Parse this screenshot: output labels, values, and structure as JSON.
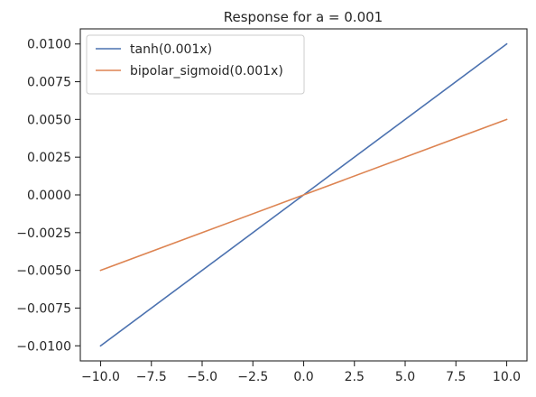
{
  "chart_data": {
    "type": "line",
    "title": "Response for a = 0.001",
    "xlabel": "",
    "ylabel": "",
    "xlim": [
      -11,
      11
    ],
    "ylim": [
      -0.011,
      0.011
    ],
    "x_ticks": [
      -10.0,
      -7.5,
      -5.0,
      -2.5,
      0.0,
      2.5,
      5.0,
      7.5,
      10.0
    ],
    "x_tick_labels": [
      "−10.0",
      "−7.5",
      "−5.0",
      "−2.5",
      "0.0",
      "2.5",
      "5.0",
      "7.5",
      "10.0"
    ],
    "y_ticks": [
      -0.01,
      -0.0075,
      -0.005,
      -0.0025,
      0.0,
      0.0025,
      0.005,
      0.0075,
      0.01
    ],
    "y_tick_labels": [
      "−0.0100",
      "−0.0075",
      "−0.0050",
      "−0.0025",
      "0.0000",
      "0.0025",
      "0.0050",
      "0.0075",
      "0.0100"
    ],
    "grid": false,
    "legend_position": "top-left",
    "series": [
      {
        "name": "tanh(0.001x)",
        "color": "#4c72b0",
        "x": [
          -10.0,
          0.0,
          10.0
        ],
        "y": [
          -0.01,
          0.0,
          0.01
        ]
      },
      {
        "name": "bipolar_sigmoid(0.001x)",
        "color": "#dd8452",
        "x": [
          -10.0,
          0.0,
          10.0
        ],
        "y": [
          -0.005,
          0.0,
          0.005
        ]
      }
    ]
  }
}
